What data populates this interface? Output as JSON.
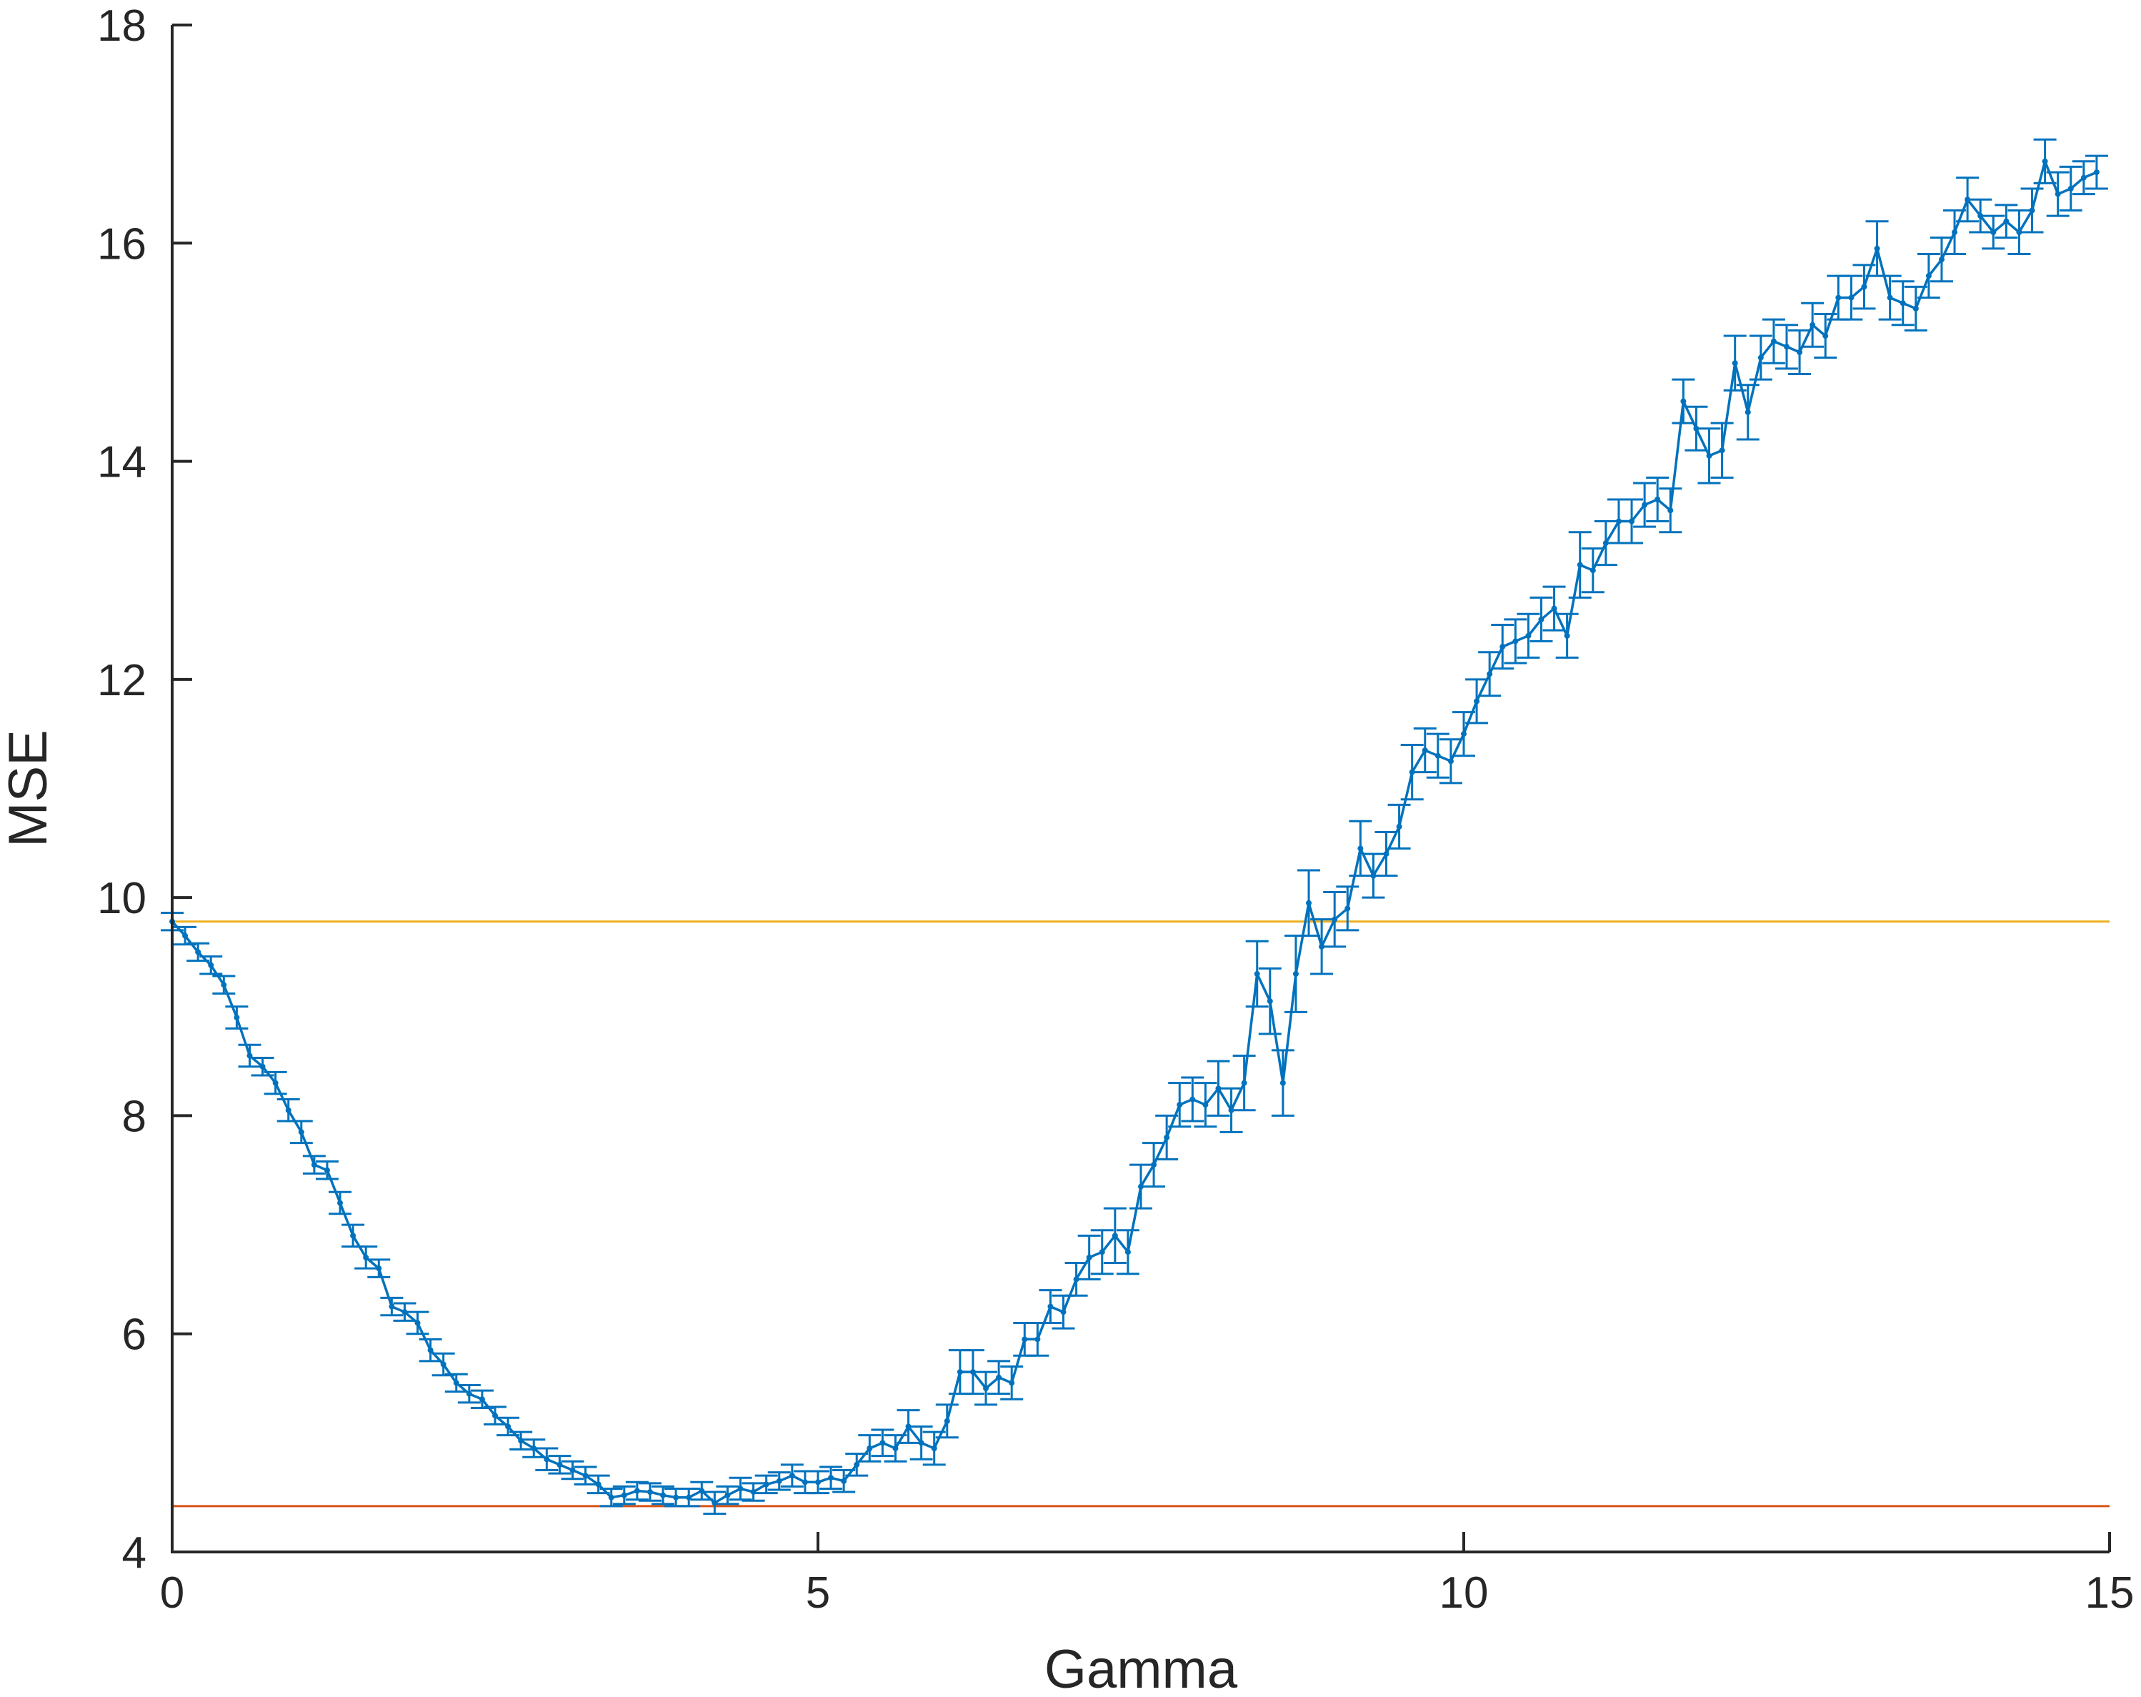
{
  "chart_data": {
    "type": "line",
    "title": "",
    "xlabel": "Gamma",
    "ylabel": "MSE",
    "xlim": [
      0,
      15
    ],
    "ylim": [
      4,
      18
    ],
    "xticks": [
      0,
      5,
      10,
      15
    ],
    "yticks": [
      4,
      6,
      8,
      10,
      12,
      14,
      16,
      18
    ],
    "grid": false,
    "legend": "none",
    "series": [
      {
        "color": "#0072BD",
        "errorbars": true,
        "x": [
          0,
          0.1,
          0.2,
          0.3,
          0.4,
          0.5,
          0.6,
          0.7,
          0.8,
          0.9,
          1.0,
          1.1,
          1.2,
          1.3,
          1.4,
          1.5,
          1.6,
          1.7,
          1.8,
          1.9,
          2.0,
          2.1,
          2.2,
          2.3,
          2.4,
          2.5,
          2.6,
          2.7,
          2.8,
          2.9,
          3.0,
          3.1,
          3.2,
          3.3,
          3.4,
          3.5,
          3.6,
          3.7,
          3.8,
          3.9,
          4.0,
          4.1,
          4.2,
          4.3,
          4.4,
          4.5,
          4.6,
          4.7,
          4.8,
          4.9,
          5.0,
          5.1,
          5.2,
          5.3,
          5.4,
          5.5,
          5.6,
          5.7,
          5.8,
          5.9,
          6.0,
          6.1,
          6.2,
          6.3,
          6.4,
          6.5,
          6.6,
          6.7,
          6.8,
          6.9,
          7.0,
          7.1,
          7.2,
          7.3,
          7.4,
          7.5,
          7.6,
          7.7,
          7.8,
          7.9,
          8.0,
          8.1,
          8.2,
          8.3,
          8.4,
          8.5,
          8.6,
          8.7,
          8.8,
          8.9,
          9.0,
          9.1,
          9.2,
          9.3,
          9.4,
          9.5,
          9.6,
          9.7,
          9.8,
          9.9,
          10.0,
          10.1,
          10.2,
          10.3,
          10.4,
          10.5,
          10.6,
          10.7,
          10.8,
          10.9,
          11.0,
          11.1,
          11.2,
          11.3,
          11.4,
          11.5,
          11.6,
          11.7,
          11.8,
          11.9,
          12.0,
          12.1,
          12.2,
          12.3,
          12.4,
          12.5,
          12.6,
          12.7,
          12.8,
          12.9,
          13.0,
          13.1,
          13.2,
          13.3,
          13.4,
          13.5,
          13.6,
          13.7,
          13.8,
          13.9,
          14.0,
          14.1,
          14.2,
          14.3,
          14.4,
          14.5,
          14.6,
          14.7,
          14.8,
          14.9
        ],
        "y": [
          9.78,
          9.65,
          9.5,
          9.38,
          9.2,
          8.9,
          8.55,
          8.45,
          8.3,
          8.05,
          7.85,
          7.55,
          7.5,
          7.2,
          6.9,
          6.7,
          6.6,
          6.25,
          6.2,
          6.1,
          5.85,
          5.72,
          5.55,
          5.45,
          5.4,
          5.25,
          5.15,
          5.02,
          4.95,
          4.85,
          4.8,
          4.75,
          4.7,
          4.62,
          4.5,
          4.52,
          4.56,
          4.55,
          4.52,
          4.5,
          4.5,
          4.56,
          4.45,
          4.52,
          4.58,
          4.55,
          4.62,
          4.65,
          4.7,
          4.64,
          4.64,
          4.68,
          4.65,
          4.8,
          4.95,
          5.0,
          4.95,
          5.15,
          5.0,
          4.95,
          5.2,
          5.65,
          5.65,
          5.5,
          5.6,
          5.55,
          5.95,
          5.95,
          6.25,
          6.2,
          6.5,
          6.7,
          6.75,
          6.9,
          6.75,
          7.35,
          7.55,
          7.8,
          8.1,
          8.15,
          8.1,
          8.25,
          8.05,
          8.3,
          9.3,
          9.05,
          8.3,
          9.3,
          9.95,
          9.55,
          9.8,
          9.9,
          10.45,
          10.2,
          10.4,
          10.65,
          11.15,
          11.35,
          11.3,
          11.25,
          11.5,
          11.8,
          12.05,
          12.3,
          12.35,
          12.4,
          12.55,
          12.65,
          12.4,
          13.05,
          13.0,
          13.25,
          13.45,
          13.45,
          13.6,
          13.65,
          13.55,
          14.55,
          14.3,
          14.05,
          14.1,
          14.9,
          14.45,
          14.95,
          15.1,
          15.05,
          15.0,
          15.25,
          15.15,
          15.5,
          15.5,
          15.6,
          15.95,
          15.5,
          15.45,
          15.4,
          15.7,
          15.85,
          16.1,
          16.4,
          16.25,
          16.1,
          16.2,
          16.1,
          16.3,
          16.75,
          16.45,
          16.5,
          16.6,
          16.65
        ],
        "err": [
          0.08,
          0.08,
          0.08,
          0.08,
          0.08,
          0.1,
          0.1,
          0.08,
          0.1,
          0.1,
          0.1,
          0.08,
          0.08,
          0.1,
          0.1,
          0.1,
          0.08,
          0.08,
          0.08,
          0.1,
          0.1,
          0.1,
          0.08,
          0.08,
          0.08,
          0.08,
          0.08,
          0.08,
          0.08,
          0.1,
          0.08,
          0.08,
          0.08,
          0.08,
          0.08,
          0.08,
          0.08,
          0.08,
          0.08,
          0.08,
          0.08,
          0.08,
          0.1,
          0.08,
          0.1,
          0.08,
          0.08,
          0.08,
          0.1,
          0.1,
          0.1,
          0.1,
          0.1,
          0.1,
          0.12,
          0.12,
          0.12,
          0.15,
          0.15,
          0.15,
          0.15,
          0.2,
          0.2,
          0.15,
          0.15,
          0.15,
          0.15,
          0.15,
          0.15,
          0.15,
          0.15,
          0.2,
          0.2,
          0.25,
          0.2,
          0.2,
          0.2,
          0.2,
          0.2,
          0.2,
          0.2,
          0.25,
          0.2,
          0.25,
          0.3,
          0.3,
          0.3,
          0.35,
          0.3,
          0.25,
          0.25,
          0.2,
          0.25,
          0.2,
          0.2,
          0.2,
          0.25,
          0.2,
          0.2,
          0.2,
          0.2,
          0.2,
          0.2,
          0.2,
          0.2,
          0.2,
          0.2,
          0.2,
          0.2,
          0.3,
          0.2,
          0.2,
          0.2,
          0.2,
          0.2,
          0.2,
          0.2,
          0.2,
          0.2,
          0.25,
          0.25,
          0.25,
          0.25,
          0.2,
          0.2,
          0.2,
          0.2,
          0.2,
          0.2,
          0.2,
          0.2,
          0.2,
          0.25,
          0.2,
          0.2,
          0.2,
          0.2,
          0.2,
          0.2,
          0.2,
          0.15,
          0.15,
          0.15,
          0.2,
          0.2,
          0.2,
          0.2,
          0.2,
          0.15,
          0.15
        ]
      },
      {
        "color": "#EDB120",
        "x": [
          0,
          15
        ],
        "y": [
          9.78,
          9.78
        ]
      },
      {
        "color": "#D95319",
        "x": [
          0,
          15
        ],
        "y": [
          4.42,
          4.42
        ]
      }
    ]
  }
}
